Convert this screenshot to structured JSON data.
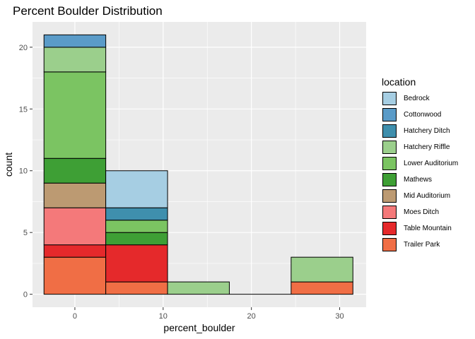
{
  "chart_data": {
    "type": "bar",
    "title": "Percent Boulder Distribution",
    "xlabel": "percent_boulder",
    "ylabel": "count",
    "xlim": [
      -4.8,
      33.0
    ],
    "ylim": [
      -1.05,
      22.05
    ],
    "x_ticks": [
      0,
      10,
      20,
      30
    ],
    "y_ticks": [
      0,
      5,
      10,
      15,
      20
    ],
    "bins": [
      {
        "xmin": -3.5,
        "xmax": 3.5,
        "stacks": [
          {
            "series": "Trailer Park",
            "value": 3
          },
          {
            "series": "Table Mountain",
            "value": 1
          },
          {
            "series": "Moes Ditch",
            "value": 3
          },
          {
            "series": "Mid Auditorium",
            "value": 2
          },
          {
            "series": "Mathews",
            "value": 2
          },
          {
            "series": "Lower Auditorium",
            "value": 7
          },
          {
            "series": "Hatchery Riffle",
            "value": 2
          },
          {
            "series": "Cottonwood",
            "value": 1
          }
        ]
      },
      {
        "xmin": 3.5,
        "xmax": 10.5,
        "stacks": [
          {
            "series": "Trailer Park",
            "value": 1
          },
          {
            "series": "Table Mountain",
            "value": 3
          },
          {
            "series": "Mathews",
            "value": 1
          },
          {
            "series": "Lower Auditorium",
            "value": 1
          },
          {
            "series": "Hatchery Ditch",
            "value": 1
          },
          {
            "series": "Bedrock",
            "value": 3
          }
        ]
      },
      {
        "xmin": 10.5,
        "xmax": 17.5,
        "stacks": [
          {
            "series": "Hatchery Riffle",
            "value": 1
          }
        ]
      },
      {
        "xmin": 17.5,
        "xmax": 24.5,
        "stacks": []
      },
      {
        "xmin": 24.5,
        "xmax": 31.5,
        "stacks": [
          {
            "series": "Trailer Park",
            "value": 1
          },
          {
            "series": "Hatchery Riffle",
            "value": 2
          }
        ]
      }
    ],
    "legend": {
      "title": "location",
      "position": "right",
      "entries": [
        {
          "name": "Bedrock",
          "color": "#A6CEE3"
        },
        {
          "name": "Cottonwood",
          "color": "#5A9BC8"
        },
        {
          "name": "Hatchery Ditch",
          "color": "#3F8FAD"
        },
        {
          "name": "Hatchery Riffle",
          "color": "#9BCF8C"
        },
        {
          "name": "Lower Auditorium",
          "color": "#7BC462"
        },
        {
          "name": "Mathews",
          "color": "#3E9F35"
        },
        {
          "name": "Mid Auditorium",
          "color": "#BC9A72"
        },
        {
          "name": "Moes Ditch",
          "color": "#F4797A"
        },
        {
          "name": "Table Mountain",
          "color": "#E5292B"
        },
        {
          "name": "Trailer Park",
          "color": "#F06E45"
        }
      ]
    },
    "grid": true,
    "panel_background": "#EBEBEB"
  }
}
